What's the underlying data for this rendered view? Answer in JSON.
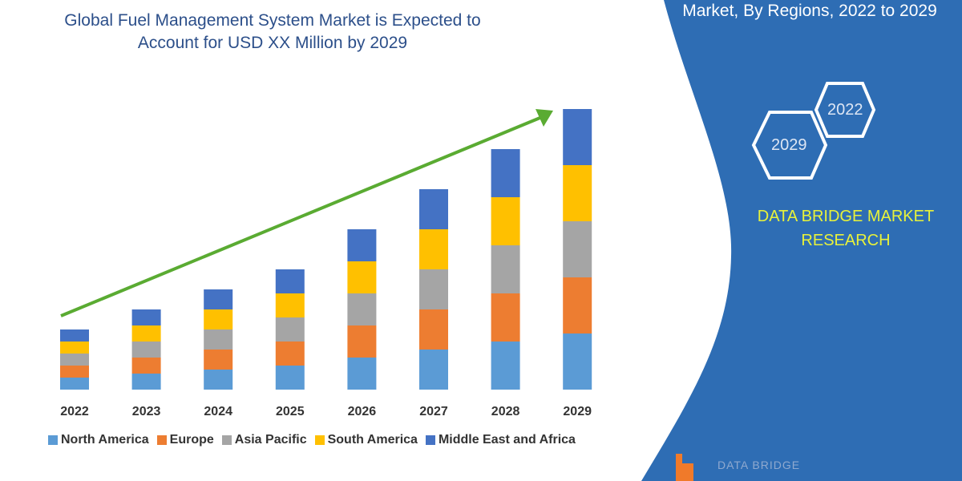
{
  "header": {
    "title_line1": "Global Fuel Management System Market is Expected to",
    "title_line2": "Account for USD XX Million by 2029",
    "right_title": "Market, By Regions, 2022 to 2029"
  },
  "panel": {
    "hex_years": [
      "2022",
      "2029"
    ],
    "brand_line1": "DATA BRIDGE MARKET",
    "brand_line2": "RESEARCH",
    "logo_text": "DATA BRIDGE",
    "color": "#2e6db4",
    "brand_color": "#e8f23a"
  },
  "chart_data": {
    "type": "bar",
    "stacked": true,
    "title": "Global Fuel Management System Market is Expected to Account for USD XX Million by 2029",
    "categories": [
      "2022",
      "2023",
      "2024",
      "2025",
      "2026",
      "2027",
      "2028",
      "2029"
    ],
    "series": [
      {
        "name": "North America",
        "color": "#5b9bd5",
        "values": [
          1.5,
          2,
          2.5,
          3,
          4,
          5,
          6,
          7
        ]
      },
      {
        "name": "Europe",
        "color": "#ed7d31",
        "values": [
          1.5,
          2,
          2.5,
          3,
          4,
          5,
          6,
          7
        ]
      },
      {
        "name": "Asia Pacific",
        "color": "#a5a5a5",
        "values": [
          1.5,
          2,
          2.5,
          3,
          4,
          5,
          6,
          7
        ]
      },
      {
        "name": "South America",
        "color": "#ffc000",
        "values": [
          1.5,
          2,
          2.5,
          3,
          4,
          5,
          6,
          7
        ]
      },
      {
        "name": "Middle East and Africa",
        "color": "#4472c4",
        "values": [
          1.5,
          2,
          2.5,
          3,
          4,
          5,
          6,
          7
        ]
      }
    ],
    "y_axis_shown": false,
    "grid": false,
    "legend_placement": "bottom",
    "trend_arrow_color": "#5aab32"
  }
}
